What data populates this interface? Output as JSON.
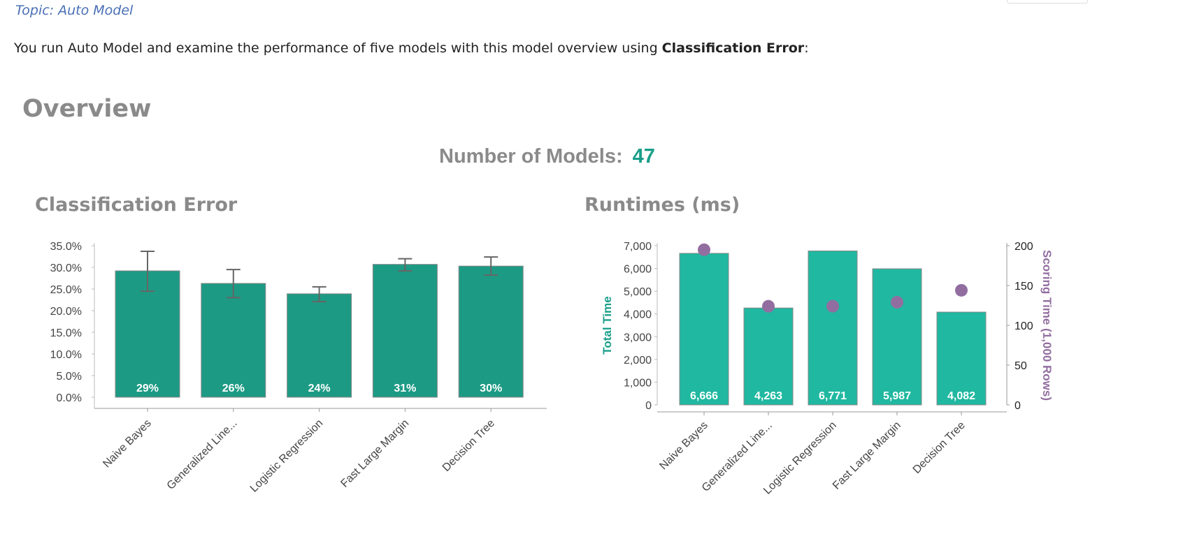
{
  "topic": "Topic: Auto Model",
  "intro": {
    "before": "You run Auto Model and examine the performance of five models with this model overview using ",
    "bold": "Classification Error",
    "after": ":"
  },
  "overview_title": "Overview",
  "num_models": {
    "label": "Number of Models:",
    "value": "47"
  },
  "colors": {
    "error_bar": "#1d9a84",
    "runtime_bar": "#20b8a0",
    "scoring_dot": "#926ea0",
    "accent": "#1a9e8a"
  },
  "chart_data": [
    {
      "type": "bar",
      "title": "Classification Error",
      "categories": [
        "Naive Bayes",
        "Generalized Line...",
        "Logistic Regression",
        "Fast Large Margin",
        "Decision Tree"
      ],
      "values": [
        29.2,
        26.3,
        23.9,
        30.7,
        30.3
      ],
      "data_labels": [
        "29%",
        "26%",
        "24%",
        "31%",
        "30%"
      ],
      "error_low": [
        24.5,
        23.0,
        22.1,
        29.2,
        28.2
      ],
      "error_high": [
        33.7,
        29.5,
        25.5,
        32.0,
        32.4
      ],
      "ylim": [
        0,
        35
      ],
      "yticks": [
        "0.0%",
        "5.0%",
        "10.0%",
        "15.0%",
        "20.0%",
        "25.0%",
        "30.0%",
        "35.0%"
      ],
      "grid": false
    },
    {
      "type": "bar",
      "title": "Runtimes (ms)",
      "categories": [
        "Naive Bayes",
        "Generalized Line...",
        "Logistic Regression",
        "Fast Large Margin",
        "Decision Tree"
      ],
      "series": [
        {
          "name": "Total Time",
          "type": "bar",
          "axis": "left",
          "values": [
            6666,
            4263,
            6771,
            5987,
            4082
          ]
        },
        {
          "name": "Scoring Time (1,000 Rows)",
          "type": "scatter",
          "axis": "right",
          "values": [
            195,
            124,
            124,
            129,
            144
          ]
        }
      ],
      "data_labels": [
        "6,666",
        "4,263",
        "6,771",
        "5,987",
        "4,082"
      ],
      "ylabel": "Total Time",
      "y2label": "Scoring Time (1,000 Rows)",
      "ylim": [
        0,
        7000
      ],
      "y2lim": [
        0,
        200
      ],
      "yticks": [
        "0",
        "1,000",
        "2,000",
        "3,000",
        "4,000",
        "5,000",
        "6,000",
        "7,000"
      ],
      "y2ticks": [
        "0",
        "50",
        "100",
        "150",
        "200"
      ],
      "grid": false
    }
  ]
}
